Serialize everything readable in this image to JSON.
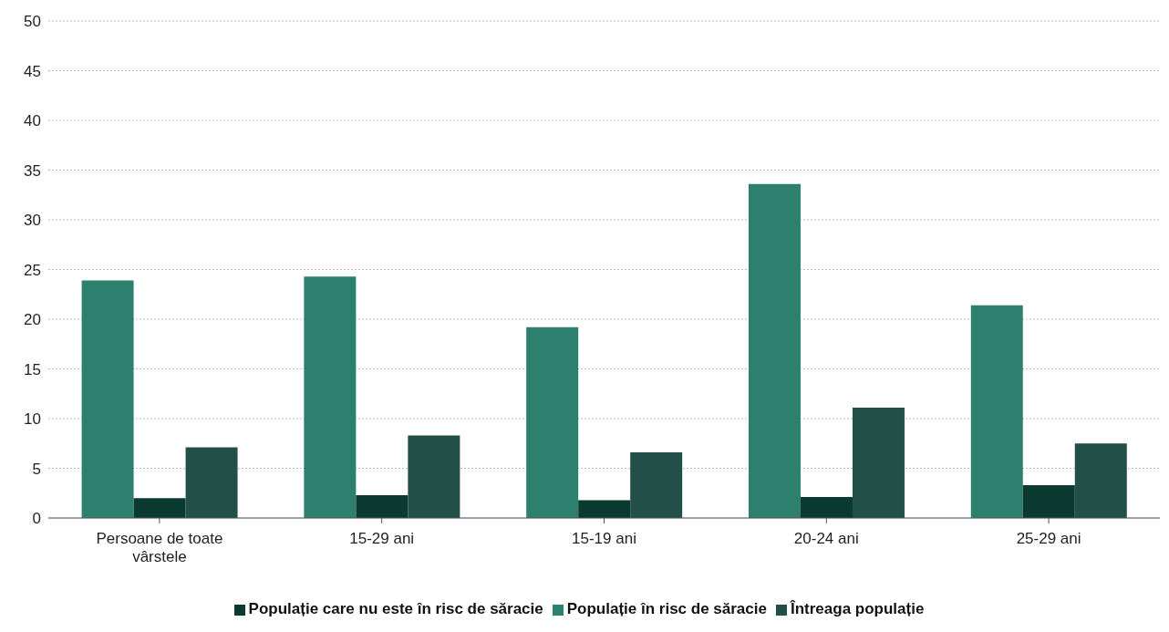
{
  "chart_data": {
    "type": "bar",
    "categories": [
      "Persoane de toate vârstele",
      "15-29 ani",
      "15-19 ani",
      "20-24 ani",
      "25-29 ani"
    ],
    "series": [
      {
        "name": "Populație în risc de săracie",
        "color": "#2e806e",
        "values": [
          23.9,
          24.3,
          19.2,
          33.6,
          21.4
        ]
      },
      {
        "name": "Populație care nu este în risc de săracie",
        "color": "#0b3a30",
        "values": [
          2.0,
          2.3,
          1.8,
          2.1,
          3.3
        ]
      },
      {
        "name": "Întreaga populație",
        "color": "#224f48",
        "values": [
          7.1,
          8.3,
          6.6,
          11.1,
          7.5
        ]
      }
    ],
    "ylim": [
      0,
      50
    ],
    "yticks": [
      0,
      5,
      10,
      15,
      20,
      25,
      30,
      35,
      40,
      45,
      50
    ],
    "grid": "y",
    "legend": "bottom"
  }
}
